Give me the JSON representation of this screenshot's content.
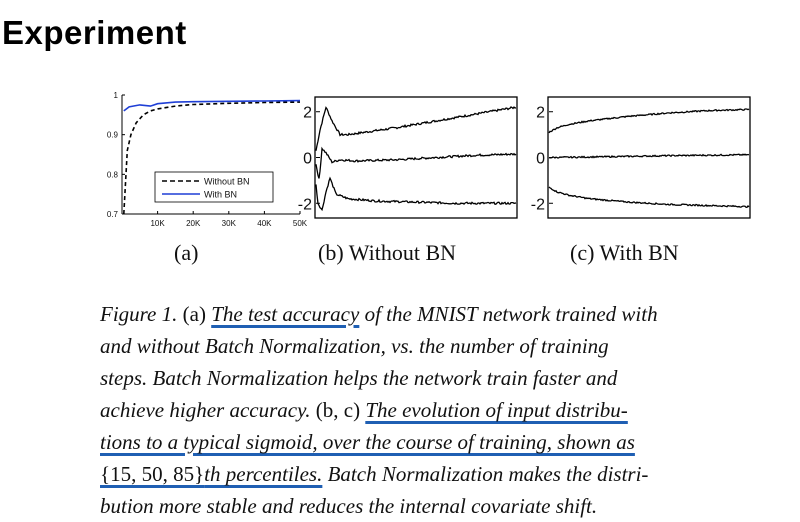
{
  "slide": {
    "title": "Experiment"
  },
  "figure": {
    "panels": [
      {
        "label": "(a)"
      },
      {
        "label": "(b) Without BN"
      },
      {
        "label": "(c) With BN"
      }
    ],
    "colors": {
      "without_bn": "#000000",
      "with_bn": "#1f3fd6",
      "underline": "#1f5fb3"
    }
  },
  "chart_data": [
    {
      "type": "line",
      "x_tick_labels": [
        "10K",
        "20K",
        "30K",
        "40K",
        "50K"
      ],
      "y_tick_labels": [
        "0.7",
        "0.8",
        "0.9",
        "1"
      ],
      "ylim": [
        0.7,
        1.0
      ],
      "xlim": [
        0,
        50000
      ],
      "legend_position": "bottom-right",
      "series": [
        {
          "name": "Without BN",
          "style": "dashed",
          "color": "#000000",
          "x": [
            500,
            1500,
            2500,
            4000,
            6000,
            8000,
            10000,
            15000,
            20000,
            30000,
            40000,
            50000
          ],
          "y": [
            0.7,
            0.86,
            0.9,
            0.93,
            0.95,
            0.96,
            0.965,
            0.972,
            0.976,
            0.979,
            0.981,
            0.982
          ]
        },
        {
          "name": "With BN",
          "style": "solid",
          "color": "#1f3fd6",
          "x": [
            500,
            2000,
            5000,
            8000,
            10000,
            15000,
            20000,
            30000,
            40000,
            50000
          ],
          "y": [
            0.96,
            0.97,
            0.975,
            0.972,
            0.978,
            0.982,
            0.983,
            0.984,
            0.985,
            0.986
          ]
        }
      ]
    },
    {
      "type": "line",
      "panel": "(b) Without BN",
      "y_tick_labels": [
        "2",
        "0",
        "-2"
      ],
      "ylim": [
        -2.6,
        2.6
      ],
      "xlim": [
        0,
        50000
      ],
      "series": [
        {
          "x": [
            0,
            1000,
            2500,
            4000,
            6000,
            8000,
            12000,
            20000,
            30000,
            40000,
            50000
          ],
          "y": [
            0.3,
            1.2,
            2.2,
            1.6,
            1.0,
            1.0,
            1.1,
            1.3,
            1.6,
            1.9,
            2.2
          ]
        },
        {
          "x": [
            0,
            800,
            1500,
            2500,
            4000,
            6000,
            10000,
            20000,
            30000,
            40000,
            50000
          ],
          "y": [
            -0.3,
            -1.0,
            0.4,
            0.2,
            -0.2,
            -0.1,
            -0.15,
            -0.1,
            0.0,
            0.1,
            0.15
          ]
        },
        {
          "x": [
            0,
            500,
            1500,
            2500,
            3500,
            5000,
            8000,
            15000,
            25000,
            35000,
            50000
          ],
          "y": [
            -1.2,
            -2.0,
            -2.3,
            -1.5,
            -0.9,
            -1.6,
            -1.8,
            -1.9,
            -1.95,
            -2.0,
            -2.0
          ]
        }
      ]
    },
    {
      "type": "line",
      "panel": "(c) With BN",
      "y_tick_labels": [
        "2",
        "0",
        "-2"
      ],
      "ylim": [
        -2.6,
        2.6
      ],
      "xlim": [
        0,
        50000
      ],
      "series": [
        {
          "x": [
            0,
            2000,
            5000,
            10000,
            20000,
            30000,
            40000,
            50000
          ],
          "y": [
            1.1,
            1.3,
            1.45,
            1.6,
            1.8,
            1.95,
            2.05,
            2.1
          ]
        },
        {
          "x": [
            0,
            10000,
            20000,
            30000,
            40000,
            50000
          ],
          "y": [
            0.0,
            0.02,
            0.05,
            0.08,
            0.1,
            0.12
          ]
        },
        {
          "x": [
            0,
            2000,
            5000,
            10000,
            20000,
            30000,
            40000,
            50000
          ],
          "y": [
            -1.3,
            -1.5,
            -1.65,
            -1.8,
            -1.95,
            -2.05,
            -2.1,
            -2.15
          ]
        }
      ]
    }
  ],
  "caption": {
    "lines": [
      [
        {
          "t": "Figure 1.",
          "i": true
        },
        {
          "t": " (a) ",
          "i": false
        },
        {
          "t": "The test accuracy",
          "i": true,
          "u": true
        },
        {
          "t": " of the MNIST network trained with",
          "i": true
        }
      ],
      [
        {
          "t": "and without Batch Normalization, vs.  the number of training",
          "i": true
        }
      ],
      [
        {
          "t": "steps.  Batch Normalization helps the network train faster and",
          "i": true
        }
      ],
      [
        {
          "t": "achieve higher accuracy.",
          "i": true
        },
        {
          "t": "  (b, c) ",
          "i": false
        },
        {
          "t": "The evolution of input distribu-",
          "i": true,
          "u": true
        }
      ],
      [
        {
          "t": "tions to a typical sigmoid, over the course of training, shown as",
          "i": true,
          "u": true
        }
      ],
      [
        {
          "t": "{15, 50, 85}",
          "i": false,
          "u": true
        },
        {
          "t": "th percentiles.",
          "i": true,
          "u": true
        },
        {
          "t": " Batch Normalization makes the distri-",
          "i": true
        }
      ],
      [
        {
          "t": "bution more stable and reduces the internal covariate shift.",
          "i": true
        }
      ]
    ]
  }
}
